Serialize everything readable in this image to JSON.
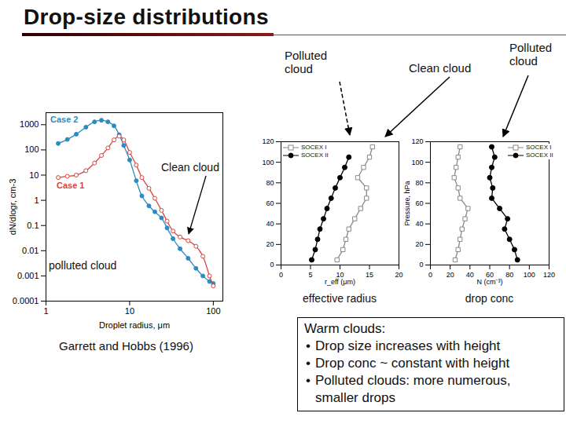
{
  "title": "Drop-size distributions",
  "chart_data": [
    {
      "type": "line",
      "log": true,
      "x_label": "Droplet radius, μm",
      "y_label": "dN/dlogr, cm-3",
      "xlim": [
        1,
        130
      ],
      "ylim": [
        0.0001,
        3000
      ],
      "xticks": [
        1,
        10,
        100
      ],
      "yticks": [
        0.0001,
        0.001,
        0.01,
        0.1,
        1,
        10,
        100,
        1000
      ],
      "series": [
        {
          "name": "Case 2",
          "color": "#2b8cc4",
          "marker": "circle",
          "line_style": "solid",
          "x": [
            1.4,
            1.8,
            2.3,
            3,
            3.8,
            4.6,
            5.5,
            6.5,
            7.5,
            8.5,
            10,
            12,
            14,
            17,
            20,
            24,
            28,
            33,
            40,
            50,
            62,
            75,
            90,
            100
          ],
          "y": [
            180,
            260,
            420,
            800,
            1300,
            1500,
            1300,
            900,
            400,
            150,
            40,
            6,
            1.5,
            0.6,
            0.35,
            0.2,
            0.08,
            0.03,
            0.012,
            0.005,
            0.002,
            0.001,
            0.0006,
            0.0005
          ]
        },
        {
          "name": "Case 1",
          "color": "#d9443f",
          "marker": "open-circle",
          "line_style": "solid",
          "x": [
            1.4,
            1.8,
            2.3,
            3,
            3.8,
            4.6,
            5.5,
            6.5,
            7.5,
            8.5,
            10,
            12,
            14,
            17,
            20,
            24,
            28,
            33,
            40,
            50,
            62,
            75,
            90,
            100
          ],
          "y": [
            8,
            9,
            10,
            15,
            30,
            60,
            120,
            250,
            350,
            250,
            80,
            25,
            8,
            3,
            1.2,
            0.4,
            0.15,
            0.06,
            0.035,
            0.025,
            0.015,
            0.006,
            0.001,
            0.0004
          ]
        }
      ],
      "annotations": [
        "Clean cloud",
        "polluted cloud"
      ],
      "caption": "Garrett and Hobbs (1996)"
    },
    {
      "type": "line",
      "x_label": "r_eff (μm)",
      "xlim": [
        0,
        20
      ],
      "ylim": [
        0,
        120
      ],
      "xticks": [
        0,
        5,
        10,
        15,
        20
      ],
      "yticks": [
        0,
        20,
        40,
        60,
        80,
        100,
        120
      ],
      "legend": "top-left",
      "series": [
        {
          "name": "SOCEX I",
          "color": "#888888",
          "marker": "open-square",
          "line_style": "solid",
          "x": [
            9.5,
            10.5,
            11,
            11.5,
            12.5,
            13.5,
            14.5,
            14.5,
            13,
            14,
            15,
            15.5
          ],
          "y": [
            5,
            15,
            25,
            35,
            45,
            55,
            65,
            75,
            85,
            95,
            105,
            115
          ]
        },
        {
          "name": "SOCEX II",
          "color": "#000000",
          "marker": "circle",
          "line_style": "solid",
          "x": [
            5.2,
            5.8,
            6.2,
            6.6,
            7.2,
            7.8,
            8.5,
            9.2,
            10,
            10.8,
            11.5
          ],
          "y": [
            5,
            15,
            25,
            35,
            45,
            55,
            65,
            75,
            85,
            95,
            105
          ]
        }
      ],
      "caption": "effective radius"
    },
    {
      "type": "line",
      "x_label": "N (cm⁻³)",
      "y_label": "Pressure, hPa",
      "xlim": [
        0,
        120
      ],
      "ylim": [
        0,
        120
      ],
      "xticks": [
        0,
        20,
        40,
        60,
        80,
        100,
        120
      ],
      "yticks": [
        0,
        20,
        40,
        60,
        80,
        100,
        120
      ],
      "legend": "top-right",
      "series": [
        {
          "name": "SOCEX I",
          "color": "#888888",
          "marker": "open-square",
          "line_style": "solid",
          "x": [
            25,
            28,
            30,
            32,
            35,
            38,
            30,
            28,
            24,
            26,
            28,
            30
          ],
          "y": [
            5,
            15,
            25,
            35,
            45,
            55,
            65,
            75,
            85,
            95,
            105,
            115
          ]
        },
        {
          "name": "SOCEX II",
          "color": "#000000",
          "marker": "circle",
          "line_style": "solid",
          "x": [
            88,
            85,
            80,
            75,
            78,
            70,
            62,
            63,
            60,
            62,
            65,
            62
          ],
          "y": [
            5,
            15,
            25,
            35,
            45,
            55,
            65,
            75,
            85,
            95,
            105,
            115
          ]
        }
      ],
      "caption": "drop conc"
    }
  ],
  "annotations": [
    "Polluted cloud",
    "Clean cloud",
    "Polluted cloud"
  ],
  "text_box": {
    "heading": "Warm clouds:",
    "bullets": [
      "Drop size increases with height",
      "Drop conc ~ constant with height",
      "Polluted clouds: more numerous, smaller drops"
    ]
  }
}
